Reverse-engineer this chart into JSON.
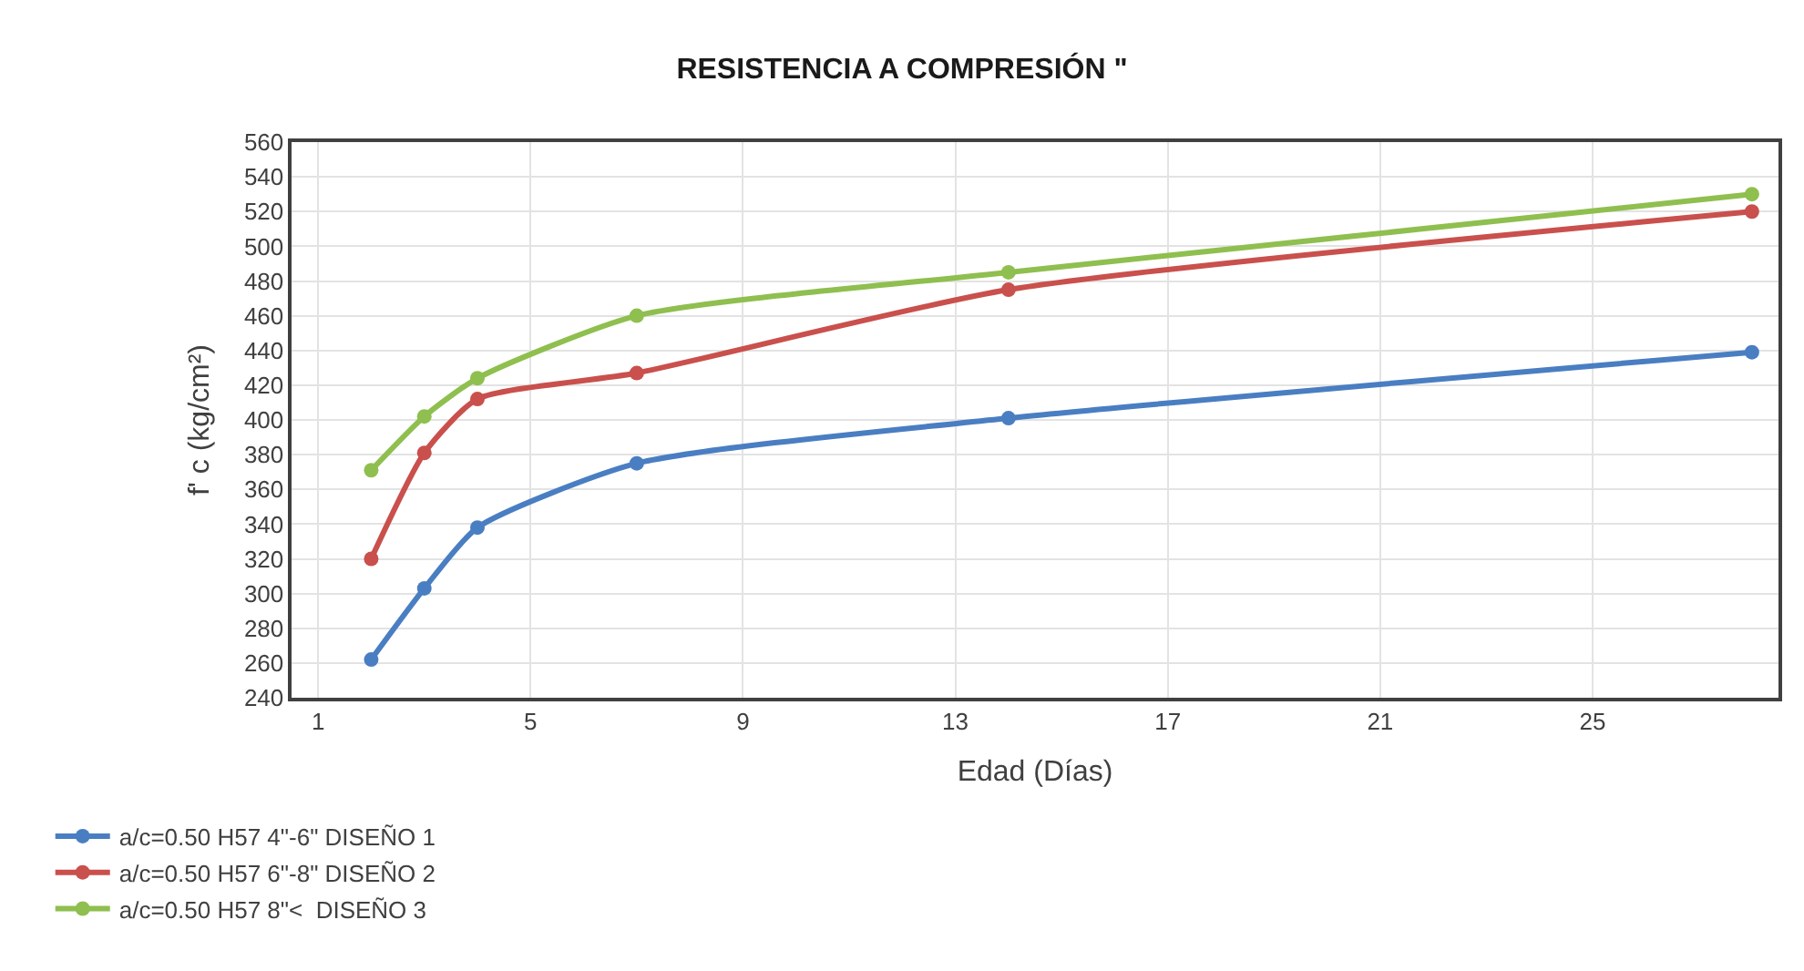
{
  "chart_data": {
    "type": "line",
    "title": "RESISTENCIA A COMPRESIÓN \"",
    "xlabel": "Edad (Días)",
    "ylabel": "f' c (kg/cm²)",
    "xlim": [
      0.5,
      28.5
    ],
    "xticks": [
      1,
      5,
      9,
      13,
      17,
      21,
      25
    ],
    "ylim": [
      240,
      560
    ],
    "yticks": [
      240,
      260,
      280,
      300,
      320,
      340,
      360,
      380,
      400,
      420,
      440,
      460,
      480,
      500,
      520,
      540,
      560
    ],
    "x": [
      2,
      3,
      4,
      7,
      14,
      28
    ],
    "series": [
      {
        "name": "a/c=0.50 H57 4\"-6\" DISEÑO 1",
        "color": "#4a7ec2",
        "values": [
          262,
          303,
          338,
          375,
          401,
          439
        ]
      },
      {
        "name": "a/c=0.50 H57 6\"-8\" DISEÑO 2",
        "color": "#c9504c",
        "values": [
          320,
          381,
          412,
          427,
          475,
          520
        ]
      },
      {
        "name": "a/c=0.50 H57 8\"<  DISEÑO 3",
        "color": "#8fbf4f",
        "values": [
          371,
          402,
          424,
          460,
          485,
          530
        ]
      }
    ],
    "grid": true,
    "legend": "bottom left",
    "marker": "circle",
    "line_style": "solid"
  }
}
